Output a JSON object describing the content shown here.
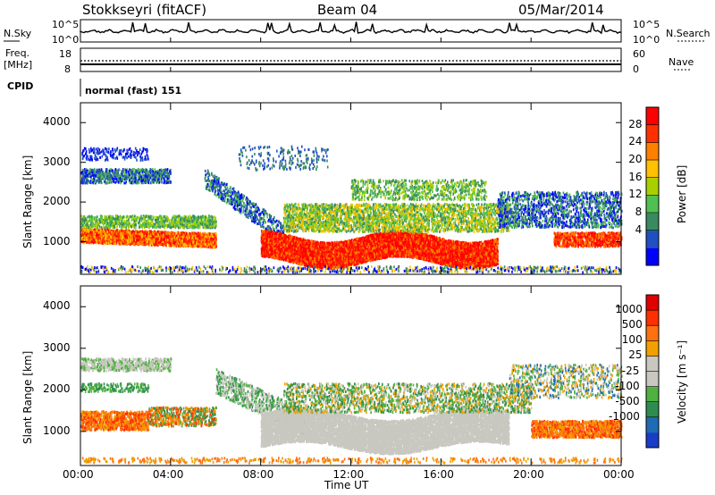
{
  "header": {
    "station": "Stokkseyri (fitACF)",
    "beam": "Beam 04",
    "date": "05/Mar/2014"
  },
  "nsky_panel": {
    "label_left": "N.Sky",
    "label_right": "N.Search",
    "left_ticks": [
      "10^5",
      "10^0"
    ],
    "right_ticks": [
      "10^5",
      "10^0"
    ]
  },
  "freq_panel": {
    "label_left_1": "Freq.",
    "label_left_2": "[MHz]",
    "label_right": "Nave",
    "left_ticks": [
      "18",
      "8"
    ],
    "right_ticks": [
      "60",
      "0"
    ]
  },
  "cpid_panel": {
    "label": "CPID",
    "value": "normal (fast) 151"
  },
  "chart_data": [
    {
      "type": "heatmap",
      "name": "power",
      "ylabel": "Slant Range [km]",
      "yticks": [
        "4000",
        "3000",
        "2000",
        "1000"
      ],
      "ytick_values": [
        4000,
        3000,
        2000,
        1000
      ],
      "ylim": [
        180,
        4500
      ],
      "xlim_hours": [
        0,
        24
      ],
      "colorbar_label": "Power [dB]",
      "colorbar_ticks": [
        "28",
        "24",
        "20",
        "16",
        "12",
        "8",
        "4"
      ],
      "colorbar_colors": [
        "#0000ff",
        "#2050c0",
        "#3a8a60",
        "#50c050",
        "#a8d000",
        "#ffc000",
        "#ff8000",
        "#ff3000",
        "#ff0000"
      ]
    },
    {
      "type": "heatmap",
      "name": "velocity",
      "ylabel": "Slant Range [km]",
      "yticks": [
        "4000",
        "3000",
        "2000",
        "1000"
      ],
      "ytick_values": [
        4000,
        3000,
        2000,
        1000
      ],
      "ylim": [
        180,
        4500
      ],
      "xlim_hours": [
        0,
        24
      ],
      "colorbar_label": "Velocity [m s⁻¹]",
      "colorbar_ticks": [
        "1000",
        "500",
        "100",
        "25",
        "-25",
        "-100",
        "-500",
        "-1000"
      ],
      "colorbar_colors": [
        "#1a3cc8",
        "#1e6cb4",
        "#2e8c50",
        "#50b040",
        "#c8c8c0",
        "#c8c8c0",
        "#f0a000",
        "#ff7010",
        "#ff3000",
        "#e00000"
      ]
    }
  ],
  "x_axis": {
    "tick_labels": [
      "00:00",
      "04:00",
      "08:00",
      "12:00",
      "16:00",
      "20:00",
      "00:00"
    ],
    "tick_hours": [
      0,
      4,
      8,
      12,
      16,
      20,
      24
    ],
    "label": "Time UT"
  }
}
